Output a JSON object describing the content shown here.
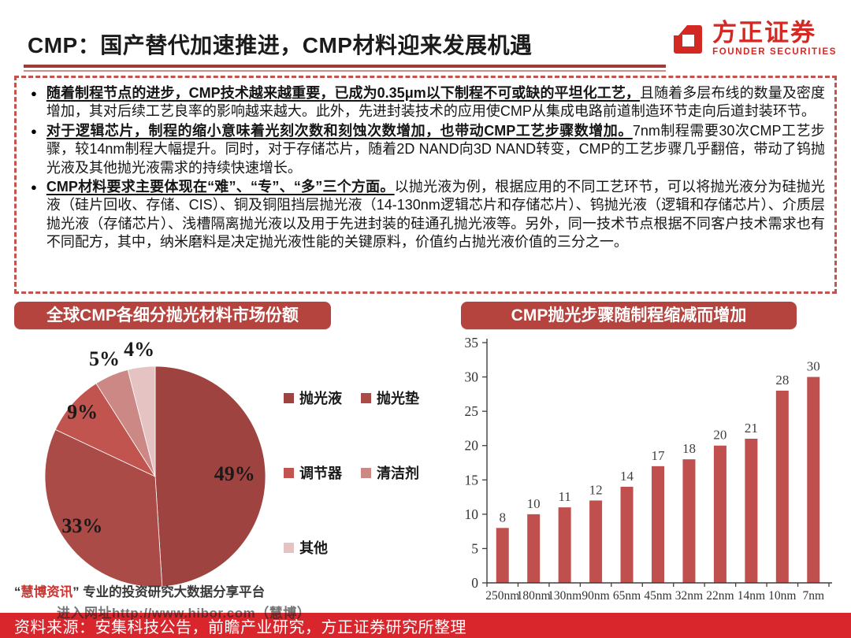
{
  "header": {
    "title": "CMP：国产替代加速推进，CMP材料迎来发展机遇",
    "logo_cn": "方正证券",
    "logo_en": "FOUNDER SECURITIES"
  },
  "bullets": [
    {
      "lead": "随着制程节点的进步，CMP技术越来越重要，已成为0.35μm以下制程不可或缺的平坦化工艺，",
      "rest": "且随着多层布线的数量及密度增加，其对后续工艺良率的影响越来越大。此外，先进封装技术的应用使CMP从集成电路前道制造环节走向后道封装环节。"
    },
    {
      "lead": "对于逻辑芯片，制程的缩小意味着光刻次数和刻蚀次数增加，也带动CMP工艺步骤数增加。",
      "rest": "7nm制程需要30次CMP工艺步骤，较14nm制程大幅提升。同时，对于存储芯片，随着2D NAND向3D NAND转变，CMP的工艺步骤几乎翻倍，带动了钨抛光液及其他抛光液需求的持续快速增长。"
    },
    {
      "lead": "CMP材料要求主要体现在“难”、“专”、“多”三个方面。",
      "rest": "以抛光液为例，根据应用的不同工艺环节，可以将抛光液分为硅抛光液（硅片回收、存储、CIS）、铜及铜阻挡层抛光液（14-130nm逻辑芯片和存储芯片）、钨抛光液（逻辑和存储芯片）、介质层抛光液（存储芯片）、浅槽隔离抛光液以及用于先进封装的硅通孔抛光液等。另外，同一技术节点根据不同客户技术需求也有不同配方，其中，纳米磨料是决定抛光液性能的关键原料，价值约占抛光液价值的三分之一。"
    }
  ],
  "left_panel": {
    "header": "全球CMP各细分抛光材料市场份额",
    "caption": {
      "open": "“",
      "brand": "慧博资讯",
      "close": "”",
      "rest": " 专业的投资研究大数据分享平台"
    }
  },
  "right_panel": {
    "header": "CMP抛光步骤随制程缩减而增加"
  },
  "footer": {
    "source": "资料来源：安集科技公告，前瞻产业研究，方正证券研究所整理",
    "watermark": "进入网址http://www.hibor.com（慧博）"
  },
  "chart_data": [
    {
      "type": "pie",
      "title": "全球CMP各细分抛光材料市场份额",
      "labels": [
        "抛光液",
        "抛光垫",
        "调节器",
        "清洁剂",
        "其他"
      ],
      "values": [
        49,
        33,
        9,
        5,
        4
      ],
      "unit": "%",
      "data_labels": [
        "49%",
        "33%",
        "9%",
        "5%",
        "4%"
      ],
      "colors": [
        "#9e433f",
        "#ab4b47",
        "#c2544f",
        "#cb8残色",
        "#e5c3c2"
      ],
      "legend_position": "right",
      "start_angle_deg": 0,
      "direction": "clockwise"
    },
    {
      "type": "bar",
      "title": "CMP抛光步骤随制程缩减而增加",
      "categories": [
        "250nm",
        "180nm",
        "130nm",
        "90nm",
        "65nm",
        "45nm",
        "32nm",
        "22nm",
        "14nm",
        "10nm",
        "7nm"
      ],
      "values": [
        8,
        10,
        11,
        12,
        14,
        17,
        18,
        20,
        21,
        28,
        30
      ],
      "xlabel": "",
      "ylabel": "",
      "ylim": [
        0,
        35
      ],
      "ytick_step": 5,
      "bar_color": "#c0504d",
      "grid": false,
      "legend": "none"
    }
  ]
}
